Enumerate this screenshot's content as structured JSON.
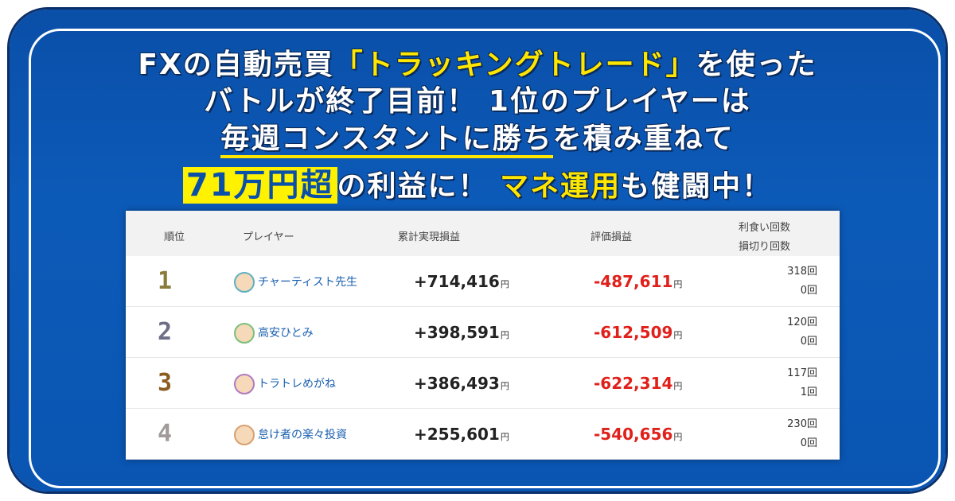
{
  "headline": {
    "lines": [
      [
        "FXの自動売買",
        "「トラッキングトレード」",
        "を使った"
      ],
      [
        "バトルが終了目前！ 1位のプレイヤーは"
      ],
      [
        "毎週コンスタントに勝ち",
        "を積み重ねて"
      ],
      [
        "71万円超",
        "の利益に！ ",
        "マネ運用",
        "も健闘中！"
      ]
    ]
  },
  "table": {
    "headers": {
      "rank": "順位",
      "player": "プレイヤー",
      "realized": "累計実現損益",
      "unrealized": "評価損益",
      "wins": "利食い回数",
      "losses": "損切り回数"
    },
    "yen_unit": "円",
    "count_unit": "回",
    "rows": [
      {
        "rank": "1",
        "player": "チャーティスト先生",
        "realized": "+714,416",
        "unrealized": "-487,611",
        "wins": "318",
        "losses": "0"
      },
      {
        "rank": "2",
        "player": "高安ひとみ",
        "realized": "+398,591",
        "unrealized": "-612,509",
        "wins": "120",
        "losses": "0"
      },
      {
        "rank": "3",
        "player": "トラトレめがね",
        "realized": "+386,493",
        "unrealized": "-622,314",
        "wins": "117",
        "losses": "1"
      },
      {
        "rank": "4",
        "player": "怠け者の楽々投資",
        "realized": "+255,601",
        "unrealized": "-540,656",
        "wins": "230",
        "losses": "0"
      }
    ]
  }
}
